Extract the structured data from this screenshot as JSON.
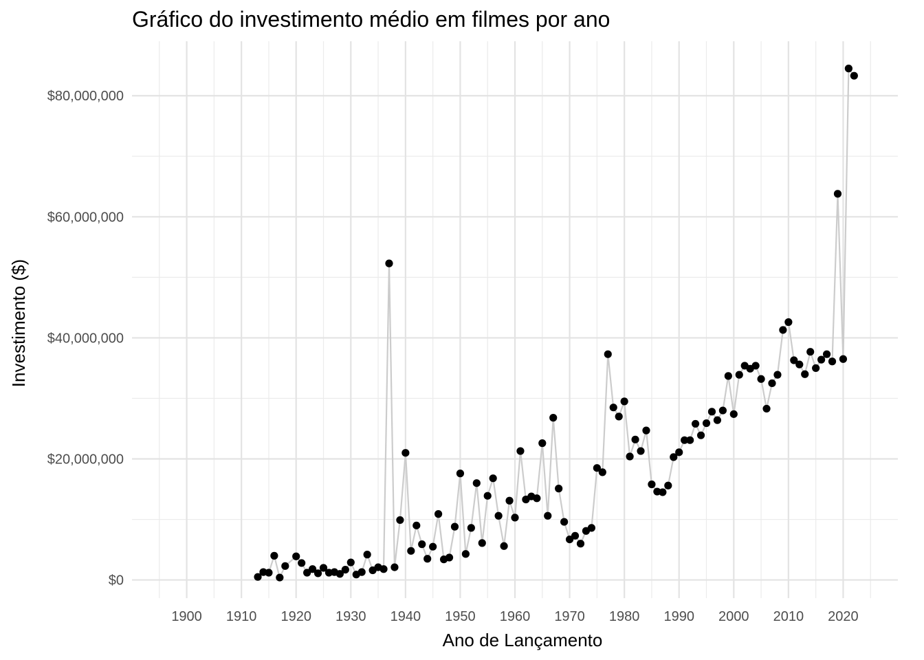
{
  "chart_data": {
    "type": "line",
    "title": "Gráfico do investimento médio em filmes por ano",
    "xlabel": "Ano de Lançamento",
    "ylabel": "Investimento ($)",
    "xlim": [
      1890,
      2030
    ],
    "ylim": [
      -3000000,
      89000000
    ],
    "x_ticks": [
      1900,
      1910,
      1920,
      1930,
      1940,
      1950,
      1960,
      1970,
      1980,
      1990,
      2000,
      2010,
      2020
    ],
    "x_tick_labels": [
      "1900",
      "1910",
      "1920",
      "1930",
      "1940",
      "1950",
      "1960",
      "1970",
      "1980",
      "1990",
      "2000",
      "2010",
      "2020"
    ],
    "y_ticks": [
      0,
      20000000,
      40000000,
      60000000,
      80000000
    ],
    "y_tick_labels": [
      "$0",
      "$20,000,000",
      "$40,000,000",
      "$60,000,000",
      "$80,000,000"
    ],
    "grid": true,
    "line_color": "#cccccc",
    "point_color": "#000000",
    "series": [
      {
        "x": [
          1913,
          1914,
          1915,
          1916,
          1917,
          1918,
          1920,
          1921,
          1922,
          1923,
          1924,
          1925,
          1926,
          1927,
          1928,
          1929,
          1930,
          1931,
          1932,
          1933,
          1934,
          1935,
          1936,
          1937,
          1938,
          1939,
          1940,
          1941,
          1942,
          1943,
          1944,
          1945,
          1946,
          1947,
          1948,
          1949,
          1950,
          1951,
          1952,
          1953,
          1954,
          1955,
          1956,
          1957,
          1958,
          1959,
          1960,
          1961,
          1962,
          1963,
          1964,
          1965,
          1966,
          1967,
          1968,
          1969,
          1970,
          1971,
          1972,
          1973,
          1974,
          1975,
          1976,
          1977,
          1978,
          1979,
          1980,
          1981,
          1982,
          1983,
          1984,
          1985,
          1986,
          1987,
          1988,
          1989,
          1990,
          1991,
          1992,
          1993,
          1994,
          1995,
          1996,
          1997,
          1998,
          1999,
          2000,
          2001,
          2002,
          2003,
          2004,
          2005,
          2006,
          2007,
          2008,
          2009,
          2010,
          2011,
          2012,
          2013,
          2014,
          2015,
          2016,
          2017,
          2018,
          2019,
          2020,
          2021,
          2022
        ],
        "y": [
          500000,
          1300000,
          1200000,
          4000000,
          400000,
          2300000,
          3900000,
          2800000,
          1200000,
          1800000,
          1100000,
          2000000,
          1200000,
          1300000,
          1000000,
          1700000,
          2900000,
          900000,
          1300000,
          4200000,
          1600000,
          2100000,
          1800000,
          52300000,
          2100000,
          9900000,
          21000000,
          4800000,
          9000000,
          5900000,
          3500000,
          5500000,
          10900000,
          3400000,
          3700000,
          8800000,
          17600000,
          4300000,
          8600000,
          16000000,
          6100000,
          13900000,
          16800000,
          10600000,
          5600000,
          13100000,
          10300000,
          21300000,
          13300000,
          13800000,
          13500000,
          22600000,
          10600000,
          26800000,
          15100000,
          9600000,
          6700000,
          7300000,
          6000000,
          8100000,
          8600000,
          18500000,
          17800000,
          37300000,
          28500000,
          27000000,
          29500000,
          20400000,
          23200000,
          21300000,
          24700000,
          15800000,
          14600000,
          14500000,
          15600000,
          20300000,
          21100000,
          23100000,
          23100000,
          25800000,
          23900000,
          25900000,
          27800000,
          26400000,
          28000000,
          33700000,
          27400000,
          33900000,
          35400000,
          34900000,
          35400000,
          33200000,
          28300000,
          32500000,
          33900000,
          41300000,
          42600000,
          36300000,
          35600000,
          34000000,
          37700000,
          35000000,
          36400000,
          37300000,
          36100000,
          63800000,
          36500000,
          84500000,
          83300000
        ]
      }
    ]
  }
}
